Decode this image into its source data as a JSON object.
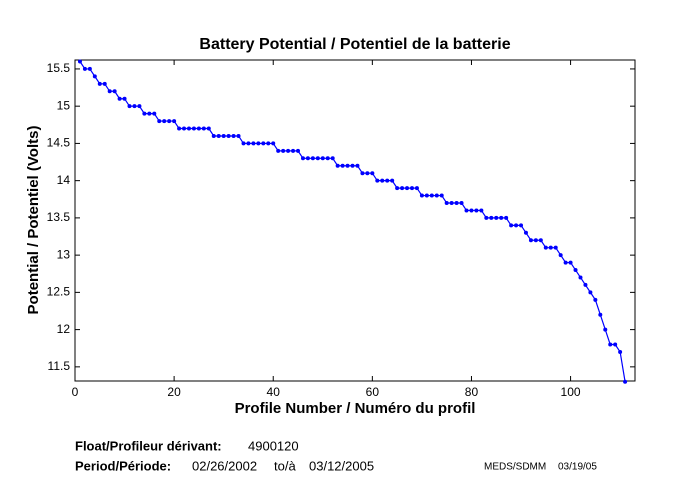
{
  "chart_data": {
    "type": "line",
    "title": "Battery Potential / Potentiel de la batterie",
    "xlabel": "Profile Number / Numéro du profil",
    "ylabel": "Potential / Potentiel (Volts)",
    "xlim": [
      0,
      113
    ],
    "ylim": [
      11.31,
      15.62
    ],
    "xticks": [
      0,
      20,
      40,
      60,
      80,
      100
    ],
    "yticks": [
      11.5,
      12,
      12.5,
      13,
      13.5,
      14,
      14.5,
      15,
      15.5
    ],
    "x": [
      1,
      2,
      3,
      4,
      5,
      6,
      7,
      8,
      9,
      10,
      11,
      12,
      13,
      14,
      15,
      16,
      17,
      18,
      19,
      20,
      21,
      22,
      23,
      24,
      25,
      26,
      27,
      28,
      29,
      30,
      31,
      32,
      33,
      34,
      35,
      36,
      37,
      38,
      39,
      40,
      41,
      42,
      43,
      44,
      45,
      46,
      47,
      48,
      49,
      50,
      51,
      52,
      53,
      54,
      55,
      56,
      57,
      58,
      59,
      60,
      61,
      62,
      63,
      64,
      65,
      66,
      67,
      68,
      69,
      70,
      71,
      72,
      73,
      74,
      75,
      76,
      77,
      78,
      79,
      80,
      81,
      82,
      83,
      84,
      85,
      86,
      87,
      88,
      89,
      90,
      91,
      92,
      93,
      94,
      95,
      96,
      97,
      98,
      99,
      100,
      101,
      102,
      103,
      104,
      105,
      106,
      107,
      108,
      109,
      110,
      111
    ],
    "series": [
      {
        "color": "#0000ff",
        "values": [
          15.6,
          15.5,
          15.5,
          15.4,
          15.3,
          15.3,
          15.2,
          15.2,
          15.1,
          15.1,
          15.0,
          15.0,
          15.0,
          14.9,
          14.9,
          14.9,
          14.8,
          14.8,
          14.8,
          14.8,
          14.7,
          14.7,
          14.7,
          14.7,
          14.7,
          14.7,
          14.7,
          14.6,
          14.6,
          14.6,
          14.6,
          14.6,
          14.6,
          14.5,
          14.5,
          14.5,
          14.5,
          14.5,
          14.5,
          14.5,
          14.4,
          14.4,
          14.4,
          14.4,
          14.4,
          14.3,
          14.3,
          14.3,
          14.3,
          14.3,
          14.3,
          14.3,
          14.2,
          14.2,
          14.2,
          14.2,
          14.2,
          14.1,
          14.1,
          14.1,
          14.0,
          14.0,
          14.0,
          14.0,
          13.9,
          13.9,
          13.9,
          13.9,
          13.9,
          13.8,
          13.8,
          13.8,
          13.8,
          13.8,
          13.7,
          13.7,
          13.7,
          13.7,
          13.6,
          13.6,
          13.6,
          13.6,
          13.5,
          13.5,
          13.5,
          13.5,
          13.5,
          13.4,
          13.4,
          13.4,
          13.3,
          13.2,
          13.2,
          13.2,
          13.1,
          13.1,
          13.1,
          13.0,
          12.9,
          12.9,
          12.8,
          12.7,
          12.6,
          12.5,
          12.4,
          12.2,
          12.0,
          11.8,
          11.8,
          11.7,
          11.3
        ]
      }
    ],
    "float_label": "Float/Profileur dérivant:",
    "float_id": "4900120",
    "period_label": "Period/Période:",
    "period_start": "02/26/2002",
    "period_sep": "to/à",
    "period_end": "03/12/2005",
    "credit": "MEDS/SDMM",
    "credit_date": "03/19/05"
  }
}
